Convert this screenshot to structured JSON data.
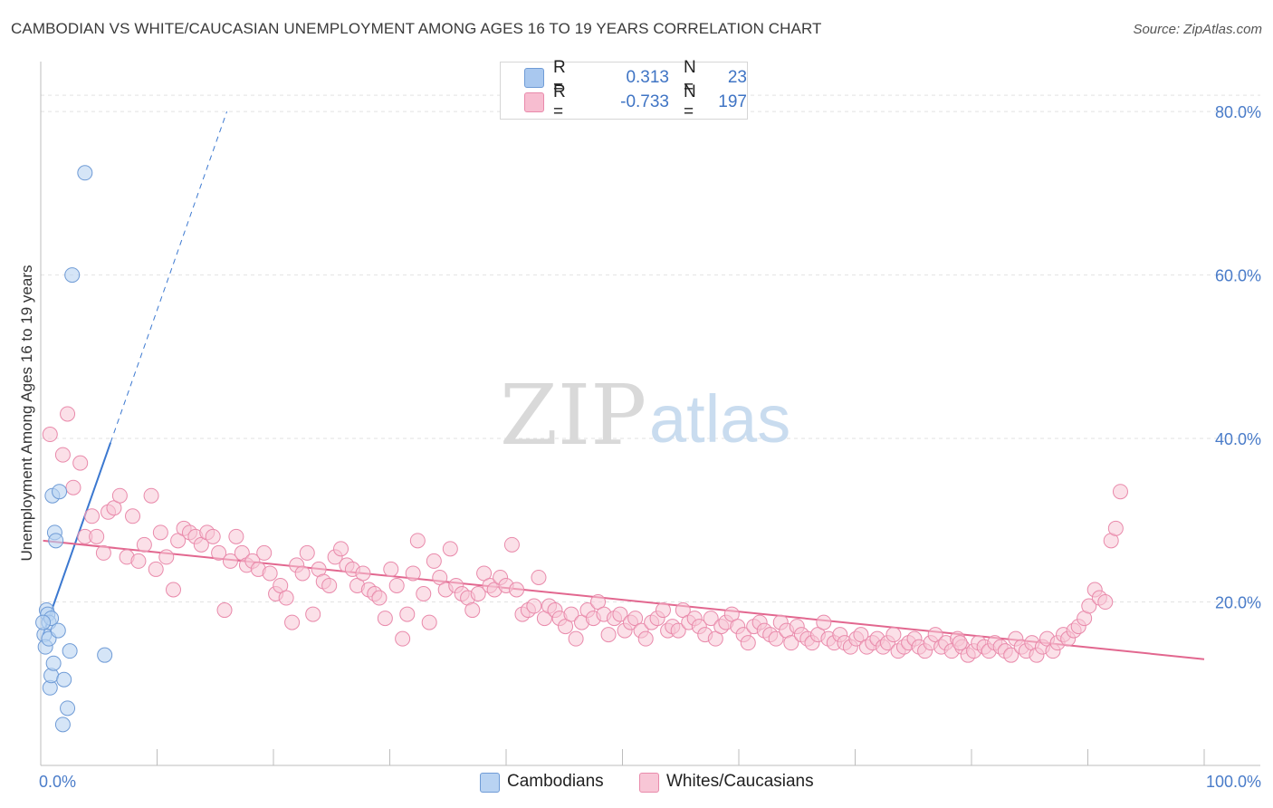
{
  "title": "CAMBODIAN VS WHITE/CAUCASIAN UNEMPLOYMENT AMONG AGES 16 TO 19 YEARS CORRELATION CHART",
  "source": "Source: ZipAtlas.com",
  "watermark": {
    "zip": "ZIP",
    "atlas": "atlas"
  },
  "legend": {
    "rows": [
      {
        "r_label": "R =",
        "r_value": "0.313",
        "n_label": "N =",
        "n_value": "23",
        "color": "#a9c8ef",
        "border": "#6f9bd6"
      },
      {
        "r_label": "R =",
        "r_value": "-0.733",
        "n_label": "N =",
        "n_value": "197",
        "color": "#f7bdd0",
        "border": "#e98aab"
      }
    ]
  },
  "bottom_legend": [
    {
      "label": "Cambodians",
      "color": "#b9d3f2",
      "border": "#6f9bd6"
    },
    {
      "label": "Whites/Caucasians",
      "color": "#f8c6d6",
      "border": "#e98aab"
    }
  ],
  "chart_data": {
    "type": "scatter",
    "title": "CAMBODIAN VS WHITE/CAUCASIAN UNEMPLOYMENT AMONG AGES 16 TO 19 YEARS CORRELATION CHART",
    "xlabel": "",
    "ylabel": "Unemployment Among Ages 16 to 19 years",
    "xlim": [
      0,
      100
    ],
    "ylim": [
      0,
      85
    ],
    "x_tick_labels": {
      "min": "0.0%",
      "max": "100.0%"
    },
    "y_ticks": [
      {
        "value": 20,
        "label": "20.0%"
      },
      {
        "value": 40,
        "label": "40.0%"
      },
      {
        "value": 60,
        "label": "60.0%"
      },
      {
        "value": 80,
        "label": "80.0%"
      }
    ],
    "grid": true,
    "series": [
      {
        "name": "Cambodians",
        "fill": "#b9d3f2",
        "stroke": "#6f9bd6",
        "trend": {
          "x0": 0.2,
          "y0": 16.0,
          "x1": 6.0,
          "y1": 39.5,
          "dashed_x1": 16.0,
          "dashed_y1": 80.0,
          "color": "#3b78d0"
        },
        "points": [
          [
            0.3,
            16.0
          ],
          [
            0.4,
            14.5
          ],
          [
            0.5,
            19.0
          ],
          [
            0.6,
            18.5
          ],
          [
            0.7,
            17.5
          ],
          [
            0.7,
            15.5
          ],
          [
            0.8,
            9.5
          ],
          [
            0.9,
            11.0
          ],
          [
            0.9,
            18.0
          ],
          [
            1.0,
            33.0
          ],
          [
            1.1,
            12.5
          ],
          [
            1.2,
            28.5
          ],
          [
            1.3,
            27.5
          ],
          [
            1.5,
            16.5
          ],
          [
            1.6,
            33.5
          ],
          [
            1.9,
            5.0
          ],
          [
            2.0,
            10.5
          ],
          [
            2.3,
            7.0
          ],
          [
            2.5,
            14.0
          ],
          [
            2.7,
            60.0
          ],
          [
            3.8,
            72.5
          ],
          [
            5.5,
            13.5
          ],
          [
            0.2,
            17.5
          ]
        ]
      },
      {
        "name": "Whites/Caucasians",
        "fill": "#f8c6d6",
        "stroke": "#e98aab",
        "trend": {
          "x0": 0.2,
          "y0": 27.5,
          "x1": 100.0,
          "y1": 13.0,
          "color": "#e2678f"
        },
        "points": [
          [
            0.8,
            40.5
          ],
          [
            1.9,
            38.0
          ],
          [
            2.3,
            43.0
          ],
          [
            2.8,
            34.0
          ],
          [
            3.4,
            37.0
          ],
          [
            3.8,
            28.0
          ],
          [
            4.4,
            30.5
          ],
          [
            4.8,
            28.0
          ],
          [
            5.4,
            26.0
          ],
          [
            5.8,
            31.0
          ],
          [
            6.3,
            31.5
          ],
          [
            6.8,
            33.0
          ],
          [
            7.4,
            25.5
          ],
          [
            7.9,
            30.5
          ],
          [
            8.4,
            25.0
          ],
          [
            8.9,
            27.0
          ],
          [
            9.5,
            33.0
          ],
          [
            9.9,
            24.0
          ],
          [
            10.3,
            28.5
          ],
          [
            10.8,
            25.5
          ],
          [
            11.4,
            21.5
          ],
          [
            11.8,
            27.5
          ],
          [
            12.3,
            29.0
          ],
          [
            12.8,
            28.5
          ],
          [
            13.3,
            28.0
          ],
          [
            13.8,
            27.0
          ],
          [
            14.3,
            28.5
          ],
          [
            14.8,
            28.0
          ],
          [
            15.3,
            26.0
          ],
          [
            15.8,
            19.0
          ],
          [
            16.3,
            25.0
          ],
          [
            16.8,
            28.0
          ],
          [
            17.3,
            26.0
          ],
          [
            17.7,
            24.5
          ],
          [
            18.2,
            25.0
          ],
          [
            18.7,
            24.0
          ],
          [
            19.2,
            26.0
          ],
          [
            19.7,
            23.5
          ],
          [
            20.2,
            21.0
          ],
          [
            20.6,
            22.0
          ],
          [
            21.1,
            20.5
          ],
          [
            21.6,
            17.5
          ],
          [
            22.0,
            24.5
          ],
          [
            22.5,
            23.5
          ],
          [
            22.9,
            26.0
          ],
          [
            23.4,
            18.5
          ],
          [
            23.9,
            24.0
          ],
          [
            24.3,
            22.5
          ],
          [
            24.8,
            22.0
          ],
          [
            25.3,
            25.5
          ],
          [
            25.8,
            26.5
          ],
          [
            26.3,
            24.5
          ],
          [
            26.8,
            24.0
          ],
          [
            27.2,
            22.0
          ],
          [
            27.7,
            23.5
          ],
          [
            28.2,
            21.5
          ],
          [
            28.7,
            21.0
          ],
          [
            29.1,
            20.5
          ],
          [
            29.6,
            18.0
          ],
          [
            30.1,
            24.0
          ],
          [
            30.6,
            22.0
          ],
          [
            31.1,
            15.5
          ],
          [
            31.5,
            18.5
          ],
          [
            32.0,
            23.5
          ],
          [
            32.4,
            27.5
          ],
          [
            32.9,
            21.0
          ],
          [
            33.4,
            17.5
          ],
          [
            33.8,
            25.0
          ],
          [
            34.3,
            23.0
          ],
          [
            34.8,
            21.5
          ],
          [
            35.2,
            26.5
          ],
          [
            35.7,
            22.0
          ],
          [
            36.2,
            21.0
          ],
          [
            36.7,
            20.5
          ],
          [
            37.1,
            19.0
          ],
          [
            37.6,
            21.0
          ],
          [
            38.1,
            23.5
          ],
          [
            38.6,
            22.0
          ],
          [
            39.0,
            21.5
          ],
          [
            39.5,
            23.0
          ],
          [
            40.0,
            22.0
          ],
          [
            40.5,
            27.0
          ],
          [
            40.9,
            21.5
          ],
          [
            41.4,
            18.5
          ],
          [
            41.9,
            19.0
          ],
          [
            42.4,
            19.5
          ],
          [
            42.8,
            23.0
          ],
          [
            43.3,
            18.0
          ],
          [
            43.7,
            19.5
          ],
          [
            44.2,
            19.0
          ],
          [
            44.6,
            18.0
          ],
          [
            45.1,
            17.0
          ],
          [
            45.6,
            18.5
          ],
          [
            46.0,
            15.5
          ],
          [
            46.5,
            17.5
          ],
          [
            47.0,
            19.0
          ],
          [
            47.5,
            18.0
          ],
          [
            47.9,
            20.0
          ],
          [
            48.4,
            18.5
          ],
          [
            48.8,
            16.0
          ],
          [
            49.3,
            18.0
          ],
          [
            49.8,
            18.5
          ],
          [
            50.2,
            16.5
          ],
          [
            50.7,
            17.5
          ],
          [
            51.1,
            18.0
          ],
          [
            51.6,
            16.5
          ],
          [
            52.0,
            15.5
          ],
          [
            52.5,
            17.5
          ],
          [
            53.0,
            18.0
          ],
          [
            53.5,
            19.0
          ],
          [
            53.9,
            16.5
          ],
          [
            54.3,
            17.0
          ],
          [
            54.8,
            16.5
          ],
          [
            55.2,
            19.0
          ],
          [
            55.7,
            17.5
          ],
          [
            56.2,
            18.0
          ],
          [
            56.6,
            17.0
          ],
          [
            57.1,
            16.0
          ],
          [
            57.6,
            18.0
          ],
          [
            58.0,
            15.5
          ],
          [
            58.5,
            17.0
          ],
          [
            58.9,
            17.5
          ],
          [
            59.4,
            18.5
          ],
          [
            59.9,
            17.0
          ],
          [
            60.4,
            16.0
          ],
          [
            60.8,
            15.0
          ],
          [
            61.3,
            17.0
          ],
          [
            61.8,
            17.5
          ],
          [
            62.2,
            16.5
          ],
          [
            62.7,
            16.0
          ],
          [
            63.2,
            15.5
          ],
          [
            63.6,
            17.5
          ],
          [
            64.1,
            16.5
          ],
          [
            64.5,
            15.0
          ],
          [
            65.0,
            17.0
          ],
          [
            65.4,
            16.0
          ],
          [
            65.9,
            15.5
          ],
          [
            66.3,
            15.0
          ],
          [
            66.8,
            16.0
          ],
          [
            67.3,
            17.5
          ],
          [
            67.7,
            15.5
          ],
          [
            68.2,
            15.0
          ],
          [
            68.7,
            16.0
          ],
          [
            69.1,
            15.0
          ],
          [
            69.6,
            14.5
          ],
          [
            70.1,
            15.5
          ],
          [
            70.5,
            16.0
          ],
          [
            71.0,
            14.5
          ],
          [
            71.5,
            15.0
          ],
          [
            71.9,
            15.5
          ],
          [
            72.4,
            14.5
          ],
          [
            72.8,
            15.0
          ],
          [
            73.3,
            16.0
          ],
          [
            73.7,
            14.0
          ],
          [
            74.2,
            14.5
          ],
          [
            74.6,
            15.0
          ],
          [
            75.1,
            15.5
          ],
          [
            75.5,
            14.5
          ],
          [
            76.0,
            14.0
          ],
          [
            76.5,
            15.0
          ],
          [
            76.9,
            16.0
          ],
          [
            77.4,
            14.5
          ],
          [
            77.8,
            15.0
          ],
          [
            78.3,
            14.0
          ],
          [
            78.8,
            15.5
          ],
          [
            79.2,
            14.5
          ],
          [
            79.7,
            13.5
          ],
          [
            80.2,
            14.0
          ],
          [
            80.6,
            15.0
          ],
          [
            81.1,
            14.5
          ],
          [
            81.5,
            14.0
          ],
          [
            82.0,
            15.0
          ],
          [
            82.5,
            14.5
          ],
          [
            82.9,
            14.0
          ],
          [
            83.4,
            13.5
          ],
          [
            83.8,
            15.5
          ],
          [
            84.3,
            14.5
          ],
          [
            84.7,
            14.0
          ],
          [
            85.2,
            15.0
          ],
          [
            85.6,
            13.5
          ],
          [
            86.1,
            14.5
          ],
          [
            86.5,
            15.5
          ],
          [
            87.0,
            14.0
          ],
          [
            87.4,
            15.0
          ],
          [
            87.9,
            16.0
          ],
          [
            88.3,
            15.5
          ],
          [
            88.8,
            16.5
          ],
          [
            89.2,
            17.0
          ],
          [
            89.7,
            18.0
          ],
          [
            90.1,
            19.5
          ],
          [
            90.6,
            21.5
          ],
          [
            91.0,
            20.5
          ],
          [
            91.5,
            20.0
          ],
          [
            92.0,
            27.5
          ],
          [
            92.4,
            29.0
          ],
          [
            92.8,
            33.5
          ],
          [
            79.0,
            15.0
          ]
        ]
      }
    ]
  }
}
